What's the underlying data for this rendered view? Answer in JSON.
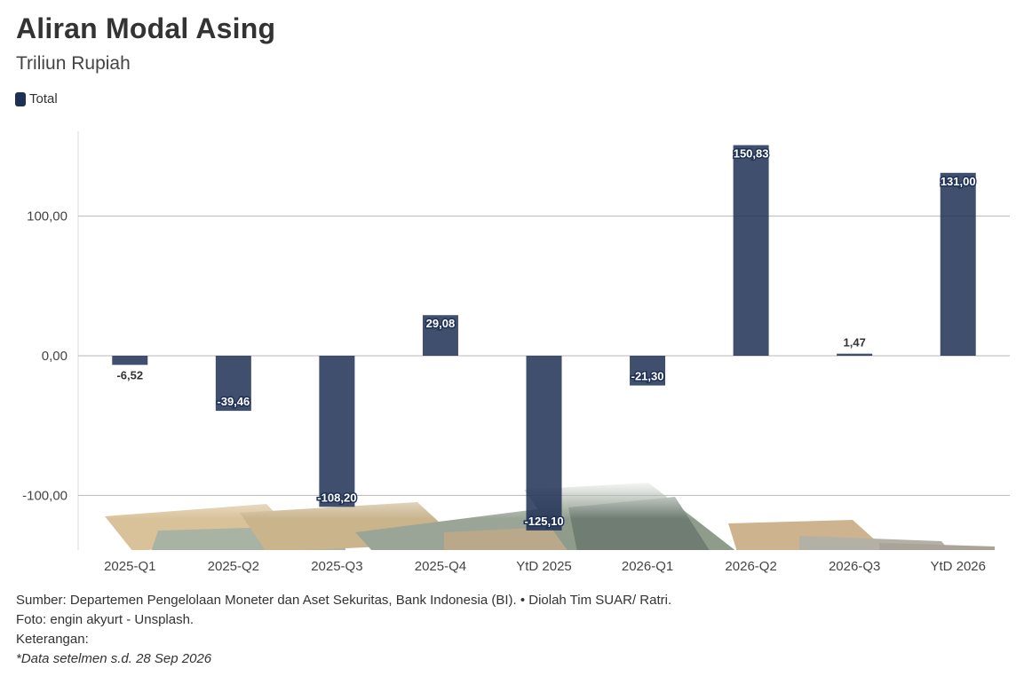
{
  "title": "Aliran Modal Asing",
  "subtitle": "Triliun Rupiah",
  "legend": {
    "label": "Total",
    "color": "#1f3055"
  },
  "footer": {
    "source": "Sumber: Departemen Pengelolaan Moneter dan Aset Sekuritas, Bank Indonesia (BI). • Diolah Tim SUAR/ Ratri.",
    "photo": "Foto: engin akyurt - Unsplash.",
    "keterangan": "Keterangan:",
    "note": "*Data setelmen s.d. 28 Sep 2026"
  },
  "chart_data": {
    "type": "bar",
    "categories": [
      "2025-Q1",
      "2025-Q2",
      "2025-Q3",
      "2025-Q4",
      "YtD 2025",
      "2026-Q1",
      "2026-Q2",
      "2026-Q3",
      "YtD 2026"
    ],
    "series": [
      {
        "name": "Total",
        "values": [
          -6.52,
          -39.46,
          -108.2,
          29.08,
          -125.1,
          -21.3,
          150.83,
          1.47,
          131.0
        ],
        "labels": [
          "-6,52",
          "-39,46",
          "-108,20",
          "29,08",
          "-125,10",
          "-21,30",
          "150,83",
          "1,47",
          "131,00"
        ]
      }
    ],
    "yticks": [
      100,
      0,
      -100
    ],
    "ytick_labels": [
      "100,00",
      "0,00",
      "-100,00"
    ],
    "ylim": [
      -140,
      160
    ],
    "grid": true,
    "bar_color": "#1f3055",
    "background_image": "banknotes-photo"
  }
}
